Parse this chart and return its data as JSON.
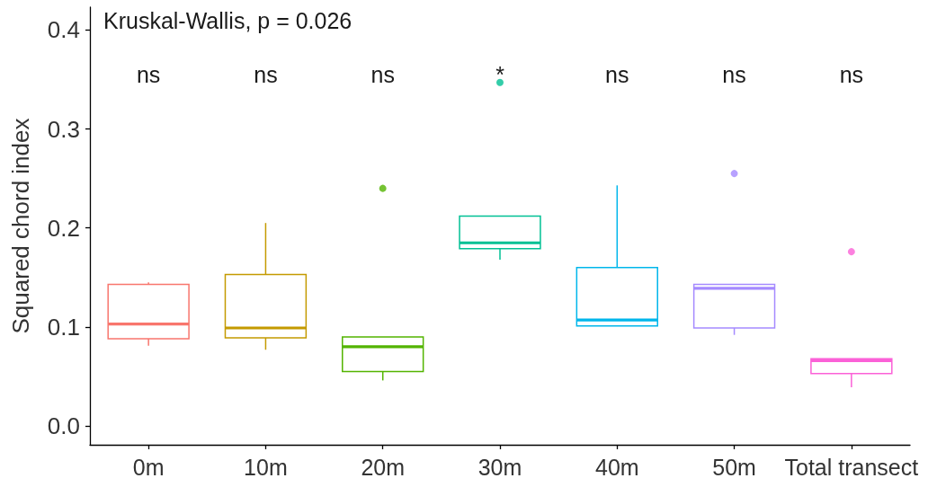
{
  "chart_data": {
    "type": "box",
    "ylabel": "Squared chord index",
    "categories": [
      "0m",
      "10m",
      "20m",
      "30m",
      "40m",
      "50m",
      "Total transect"
    ],
    "colors": [
      "#f8766d",
      "#c49a00",
      "#53b400",
      "#00c094",
      "#00b6eb",
      "#a58aff",
      "#fb61d7"
    ],
    "boxes": [
      {
        "low": 0.081,
        "q1": 0.088,
        "median": 0.103,
        "q3": 0.143,
        "high": 0.145
      },
      {
        "low": 0.077,
        "q1": 0.089,
        "median": 0.099,
        "q3": 0.153,
        "high": 0.205
      },
      {
        "low": 0.046,
        "q1": 0.055,
        "median": 0.08,
        "q3": 0.09,
        "high": 0.09,
        "outliers": [
          0.24
        ]
      },
      {
        "low": 0.168,
        "q1": 0.179,
        "median": 0.185,
        "q3": 0.212,
        "high": 0.212,
        "outliers": [
          0.347
        ]
      },
      {
        "low": 0.101,
        "q1": 0.101,
        "median": 0.107,
        "q3": 0.16,
        "high": 0.243
      },
      {
        "low": 0.092,
        "q1": 0.099,
        "median": 0.139,
        "q3": 0.143,
        "high": 0.143,
        "outliers": [
          0.255
        ]
      },
      {
        "low": 0.039,
        "q1": 0.053,
        "median": 0.066,
        "q3": 0.068,
        "high": 0.068,
        "outliers": [
          0.176
        ]
      }
    ],
    "ylim": [
      -0.019,
      0.423
    ],
    "yticks": [
      {
        "value": 0,
        "label": "0.0"
      },
      0.1,
      0.2,
      0.3,
      0.4
    ],
    "annotations": [
      "Kruskal-Wallis, p = 0.026",
      "ns",
      "ns",
      "ns",
      "*",
      "ns",
      "ns",
      "ns"
    ]
  }
}
